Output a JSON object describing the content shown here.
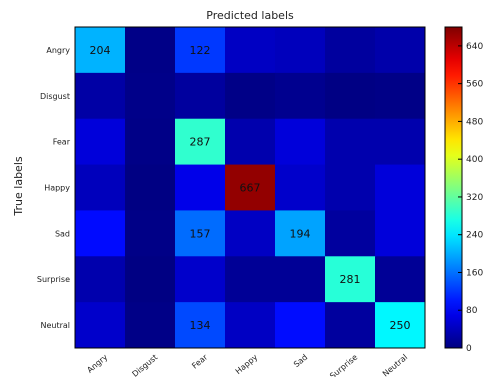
{
  "chart_data": {
    "type": "heatmap",
    "title": "Predicted labels",
    "xlabel": "",
    "ylabel": "True labels",
    "x_categories": [
      "Angry",
      "Disgust",
      "Fear",
      "Happy",
      "Sad",
      "Surprise",
      "Neutral"
    ],
    "y_categories": [
      "Angry",
      "Disgust",
      "Fear",
      "Happy",
      "Sad",
      "Surprise",
      "Neutral"
    ],
    "values": [
      [
        204,
        5,
        122,
        45,
        40,
        20,
        28
      ],
      [
        25,
        6,
        20,
        5,
        10,
        3,
        5
      ],
      [
        60,
        5,
        287,
        30,
        60,
        30,
        30
      ],
      [
        40,
        2,
        70,
        667,
        50,
        30,
        60
      ],
      [
        92,
        5,
        157,
        45,
        194,
        20,
        60
      ],
      [
        30,
        2,
        50,
        15,
        15,
        281,
        15
      ],
      [
        50,
        5,
        134,
        45,
        93,
        20,
        250
      ]
    ],
    "shown_labels": [
      [
        0,
        0,
        "204"
      ],
      [
        0,
        2,
        "122"
      ],
      [
        2,
        2,
        "287"
      ],
      [
        3,
        3,
        "667"
      ],
      [
        4,
        2,
        "157"
      ],
      [
        4,
        4,
        "194"
      ],
      [
        5,
        5,
        "281"
      ],
      [
        6,
        2,
        "134"
      ],
      [
        6,
        6,
        "250"
      ]
    ],
    "colormap": "jet",
    "vmin": 0,
    "vmax": 680,
    "colorbar": {
      "ticks": [
        "0",
        "80",
        "160",
        "240",
        "320",
        "400",
        "480",
        "560",
        "640"
      ],
      "tick_values": [
        0,
        80,
        160,
        240,
        320,
        400,
        480,
        560,
        640
      ]
    },
    "grid": false
  }
}
